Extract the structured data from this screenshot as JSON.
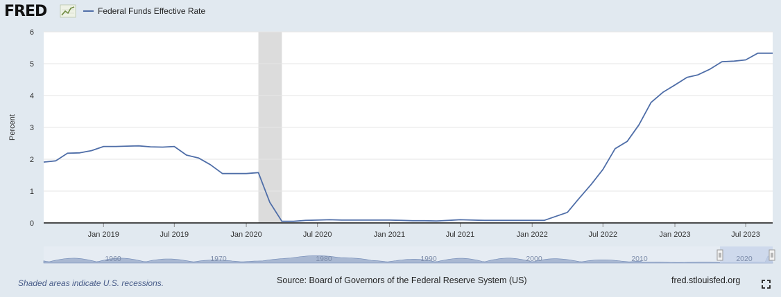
{
  "header": {
    "logo_text": "FRED",
    "legend_label": "Federal Funds Effective Rate"
  },
  "colors": {
    "series": "#4f6ea8",
    "recession": "#dcdcdc",
    "navigator": "#a9b8d2",
    "navigator_window": "#c6d3ea",
    "background": "#e1e9f0"
  },
  "chart_data": {
    "type": "line",
    "xlabel": "",
    "ylabel": "Percent",
    "ylim": [
      0,
      6
    ],
    "yticks": [
      "0",
      "1",
      "2",
      "3",
      "4",
      "5",
      "6"
    ],
    "grid": true,
    "xticks": [
      {
        "label": "Jan 2019",
        "date": "2019-01-01"
      },
      {
        "label": "Jul 2019",
        "date": "2019-07-01"
      },
      {
        "label": "Jan 2020",
        "date": "2020-01-01"
      },
      {
        "label": "Jul 2020",
        "date": "2020-07-01"
      },
      {
        "label": "Jan 2021",
        "date": "2021-01-01"
      },
      {
        "label": "Jul 2021",
        "date": "2021-07-01"
      },
      {
        "label": "Jan 2022",
        "date": "2022-01-01"
      },
      {
        "label": "Jul 2022",
        "date": "2022-07-01"
      },
      {
        "label": "Jan 2023",
        "date": "2023-01-01"
      },
      {
        "label": "Jul 2023",
        "date": "2023-07-01"
      }
    ],
    "recessions": [
      {
        "start": "2020-02-01",
        "end": "2020-04-01"
      }
    ],
    "series": [
      {
        "name": "Federal Funds Effective Rate",
        "points": [
          [
            "2018-08-01",
            1.91
          ],
          [
            "2018-09-01",
            1.95
          ],
          [
            "2018-10-01",
            2.19
          ],
          [
            "2018-11-01",
            2.2
          ],
          [
            "2018-12-01",
            2.27
          ],
          [
            "2019-01-01",
            2.4
          ],
          [
            "2019-02-01",
            2.4
          ],
          [
            "2019-03-01",
            2.41
          ],
          [
            "2019-04-01",
            2.42
          ],
          [
            "2019-05-01",
            2.39
          ],
          [
            "2019-06-01",
            2.38
          ],
          [
            "2019-07-01",
            2.4
          ],
          [
            "2019-08-01",
            2.13
          ],
          [
            "2019-09-01",
            2.04
          ],
          [
            "2019-10-01",
            1.83
          ],
          [
            "2019-11-01",
            1.55
          ],
          [
            "2019-12-01",
            1.55
          ],
          [
            "2020-01-01",
            1.55
          ],
          [
            "2020-02-01",
            1.58
          ],
          [
            "2020-03-01",
            0.65
          ],
          [
            "2020-04-01",
            0.05
          ],
          [
            "2020-05-01",
            0.05
          ],
          [
            "2020-06-01",
            0.08
          ],
          [
            "2020-07-01",
            0.09
          ],
          [
            "2020-08-01",
            0.1
          ],
          [
            "2020-09-01",
            0.09
          ],
          [
            "2020-10-01",
            0.09
          ],
          [
            "2020-11-01",
            0.09
          ],
          [
            "2020-12-01",
            0.09
          ],
          [
            "2021-01-01",
            0.09
          ],
          [
            "2021-02-01",
            0.08
          ],
          [
            "2021-03-01",
            0.07
          ],
          [
            "2021-04-01",
            0.07
          ],
          [
            "2021-05-01",
            0.06
          ],
          [
            "2021-06-01",
            0.08
          ],
          [
            "2021-07-01",
            0.1
          ],
          [
            "2021-08-01",
            0.09
          ],
          [
            "2021-09-01",
            0.08
          ],
          [
            "2021-10-01",
            0.08
          ],
          [
            "2021-11-01",
            0.08
          ],
          [
            "2021-12-01",
            0.08
          ],
          [
            "2022-01-01",
            0.08
          ],
          [
            "2022-02-01",
            0.08
          ],
          [
            "2022-03-01",
            0.2
          ],
          [
            "2022-04-01",
            0.33
          ],
          [
            "2022-05-01",
            0.77
          ],
          [
            "2022-06-01",
            1.21
          ],
          [
            "2022-07-01",
            1.68
          ],
          [
            "2022-08-01",
            2.33
          ],
          [
            "2022-09-01",
            2.56
          ],
          [
            "2022-10-01",
            3.08
          ],
          [
            "2022-11-01",
            3.78
          ],
          [
            "2022-12-01",
            4.1
          ],
          [
            "2023-01-01",
            4.33
          ],
          [
            "2023-02-01",
            4.57
          ],
          [
            "2023-03-01",
            4.65
          ],
          [
            "2023-04-01",
            4.83
          ],
          [
            "2023-05-01",
            5.06
          ],
          [
            "2023-06-01",
            5.08
          ],
          [
            "2023-07-01",
            5.12
          ],
          [
            "2023-08-01",
            5.33
          ],
          [
            "2023-09-01",
            5.33
          ]
        ]
      }
    ],
    "navigator": {
      "labels": [
        "1960",
        "1970",
        "1980",
        "1990",
        "2000",
        "2010",
        "2020"
      ]
    }
  },
  "footer": {
    "recession_note": "Shaded areas indicate U.S. recessions.",
    "source": "Source: Board of Governors of the Federal Reserve System (US)",
    "site": "fred.stlouisfed.org"
  },
  "icons": {
    "logo_graph": "fred-graph-icon",
    "fullscreen": "fullscreen-icon"
  }
}
